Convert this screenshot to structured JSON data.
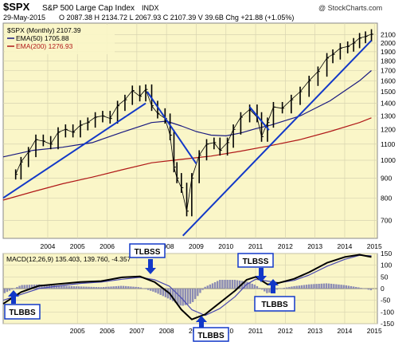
{
  "header": {
    "symbol": "$SPX",
    "name": "S&P 500 Large Cap Index",
    "exchange": "INDX",
    "date": "29-May-2015",
    "quote": "O 2087.38  H 2134.72  L 2067.93  C 2107.39  V 39.6B  Chg +21.88 (+1.05%)",
    "watermark": "@ StockCharts.com"
  },
  "colors": {
    "panel_bg": "#faf6c8",
    "grid": "#d8d4b0",
    "price": "#000000",
    "ema50": "#1a1a80",
    "ema200": "#b01818",
    "trendline": "#1238c8",
    "macd": "#000000",
    "signal": "#4a4ab0",
    "histogram": "#8c8cb4",
    "callout_fill": "#ffffff",
    "callout_stroke": "#1238c8"
  },
  "legend": {
    "price": "$SPX (Monthly) 2107.39",
    "ema50": "EMA(50) 1705.88",
    "ema200": "EMA(200) 1276.93",
    "macd": "MACD(12,26,9) 135.403, 139.760, -4.357"
  },
  "callouts": {
    "c1": "TLBBS",
    "c2": "TLBSS",
    "c3": "TLBBS",
    "c4": "TLBSS",
    "c5": "TLBBS"
  },
  "chart_data": {
    "type": "line",
    "price_panel": {
      "yscale": "log",
      "ylim": [
        630,
        2250
      ],
      "xlim": [
        2003.0,
        2015.6
      ],
      "y_ticks": [
        700,
        800,
        900,
        1000,
        1100,
        1200,
        1300,
        1400,
        1500,
        1600,
        1700,
        1800,
        1900,
        2000,
        2100
      ],
      "x_ticks": [
        "2004",
        "2005",
        "2006",
        "2007",
        "2008",
        "2009",
        "2010",
        "2011",
        "2012",
        "2013",
        "2014",
        "2015"
      ],
      "series": [
        {
          "name": "$SPX (Monthly)",
          "kind": "hlc-bars",
          "x": [
            2003.42,
            2003.6,
            2003.85,
            2004.1,
            2004.35,
            2004.6,
            2004.85,
            2005.1,
            2005.35,
            2005.6,
            2005.85,
            2006.1,
            2006.35,
            2006.6,
            2006.85,
            2007.1,
            2007.35,
            2007.6,
            2007.8,
            2008.0,
            2008.2,
            2008.45,
            2008.62,
            2008.75,
            2008.85,
            2009.0,
            2009.18,
            2009.35,
            2009.6,
            2009.85,
            2010.1,
            2010.3,
            2010.55,
            2010.75,
            2011.0,
            2011.3,
            2011.55,
            2011.7,
            2011.9,
            2012.1,
            2012.4,
            2012.7,
            2013.0,
            2013.3,
            2013.6,
            2013.9,
            2014.1,
            2014.35,
            2014.6,
            2014.8,
            2015.0,
            2015.2,
            2015.4
          ],
          "close": [
            920,
            990,
            1050,
            1130,
            1120,
            1100,
            1180,
            1200,
            1180,
            1230,
            1250,
            1290,
            1300,
            1280,
            1380,
            1430,
            1510,
            1460,
            1520,
            1380,
            1320,
            1280,
            1160,
            960,
            900,
            850,
            740,
            900,
            1030,
            1100,
            1110,
            1060,
            1110,
            1200,
            1290,
            1350,
            1290,
            1150,
            1250,
            1370,
            1360,
            1430,
            1500,
            1600,
            1690,
            1830,
            1870,
            1940,
            1960,
            2000,
            2060,
            2080,
            2107
          ]
        },
        {
          "name": "EMA(50)",
          "x": [
            2003.0,
            2004.0,
            2005.0,
            2006.0,
            2007.0,
            2008.0,
            2008.5,
            2009.0,
            2009.5,
            2010.0,
            2010.5,
            2011.0,
            2011.5,
            2012.0,
            2013.0,
            2014.0,
            2015.0,
            2015.4
          ],
          "values": [
            1020,
            1060,
            1080,
            1110,
            1180,
            1250,
            1260,
            1225,
            1185,
            1160,
            1155,
            1175,
            1205,
            1230,
            1300,
            1420,
            1600,
            1700
          ]
        },
        {
          "name": "EMA(200)",
          "x": [
            2003.0,
            2004.0,
            2005.0,
            2006.0,
            2007.0,
            2008.0,
            2009.0,
            2010.0,
            2011.0,
            2012.0,
            2013.0,
            2014.0,
            2015.0,
            2015.4
          ],
          "values": [
            790,
            830,
            870,
            905,
            945,
            985,
            1005,
            1025,
            1055,
            1090,
            1130,
            1185,
            1250,
            1285
          ]
        },
        {
          "name": "trendline 1",
          "kind": "trendline",
          "x": [
            2003.0,
            2007.8
          ],
          "values": [
            800,
            1400
          ]
        },
        {
          "name": "trendline 2",
          "kind": "trendline",
          "x": [
            2007.85,
            2009.5
          ],
          "values": [
            1500,
            980
          ]
        },
        {
          "name": "trendline 3",
          "kind": "trendline",
          "x": [
            2009.05,
            2015.4
          ],
          "values": [
            640,
            2030
          ]
        },
        {
          "name": "trendline 4",
          "kind": "trendline",
          "x": [
            2011.3,
            2011.95
          ],
          "values": [
            1370,
            1195
          ]
        }
      ]
    },
    "macd_panel": {
      "ylim": [
        -150,
        150
      ],
      "y_ticks": [
        150,
        100,
        50,
        0,
        -50,
        -100,
        -150
      ],
      "x_ticks": [
        "2005",
        "2006",
        "2007",
        "2008",
        "2009",
        "2010",
        "2011",
        "2012",
        "2013",
        "2014",
        "2015"
      ],
      "series": [
        {
          "name": "MACD(12,26,9)",
          "x": [
            2003.0,
            2003.6,
            2004.2,
            2004.9,
            2005.6,
            2006.3,
            2007.0,
            2007.6,
            2008.1,
            2008.6,
            2009.0,
            2009.35,
            2009.8,
            2010.3,
            2010.8,
            2011.2,
            2011.5,
            2011.9,
            2012.3,
            2012.8,
            2013.3,
            2013.9,
            2014.5,
            2015.0,
            2015.4
          ],
          "values": [
            -65,
            -15,
            12,
            20,
            28,
            32,
            48,
            52,
            28,
            -20,
            -90,
            -132,
            -110,
            -60,
            -10,
            38,
            50,
            18,
            25,
            42,
            70,
            110,
            135,
            145,
            135
          ]
        },
        {
          "name": "signal",
          "x": [
            2003.0,
            2003.6,
            2004.2,
            2004.9,
            2005.6,
            2006.3,
            2007.0,
            2007.6,
            2008.1,
            2008.6,
            2009.0,
            2009.35,
            2009.8,
            2010.3,
            2010.8,
            2011.2,
            2011.5,
            2011.9,
            2012.3,
            2012.8,
            2013.3,
            2013.9,
            2014.5,
            2015.0,
            2015.4
          ],
          "values": [
            -50,
            -25,
            0,
            12,
            22,
            28,
            40,
            48,
            38,
            10,
            -40,
            -90,
            -115,
            -85,
            -35,
            18,
            40,
            32,
            25,
            35,
            58,
            95,
            125,
            142,
            140
          ]
        }
      ]
    }
  }
}
